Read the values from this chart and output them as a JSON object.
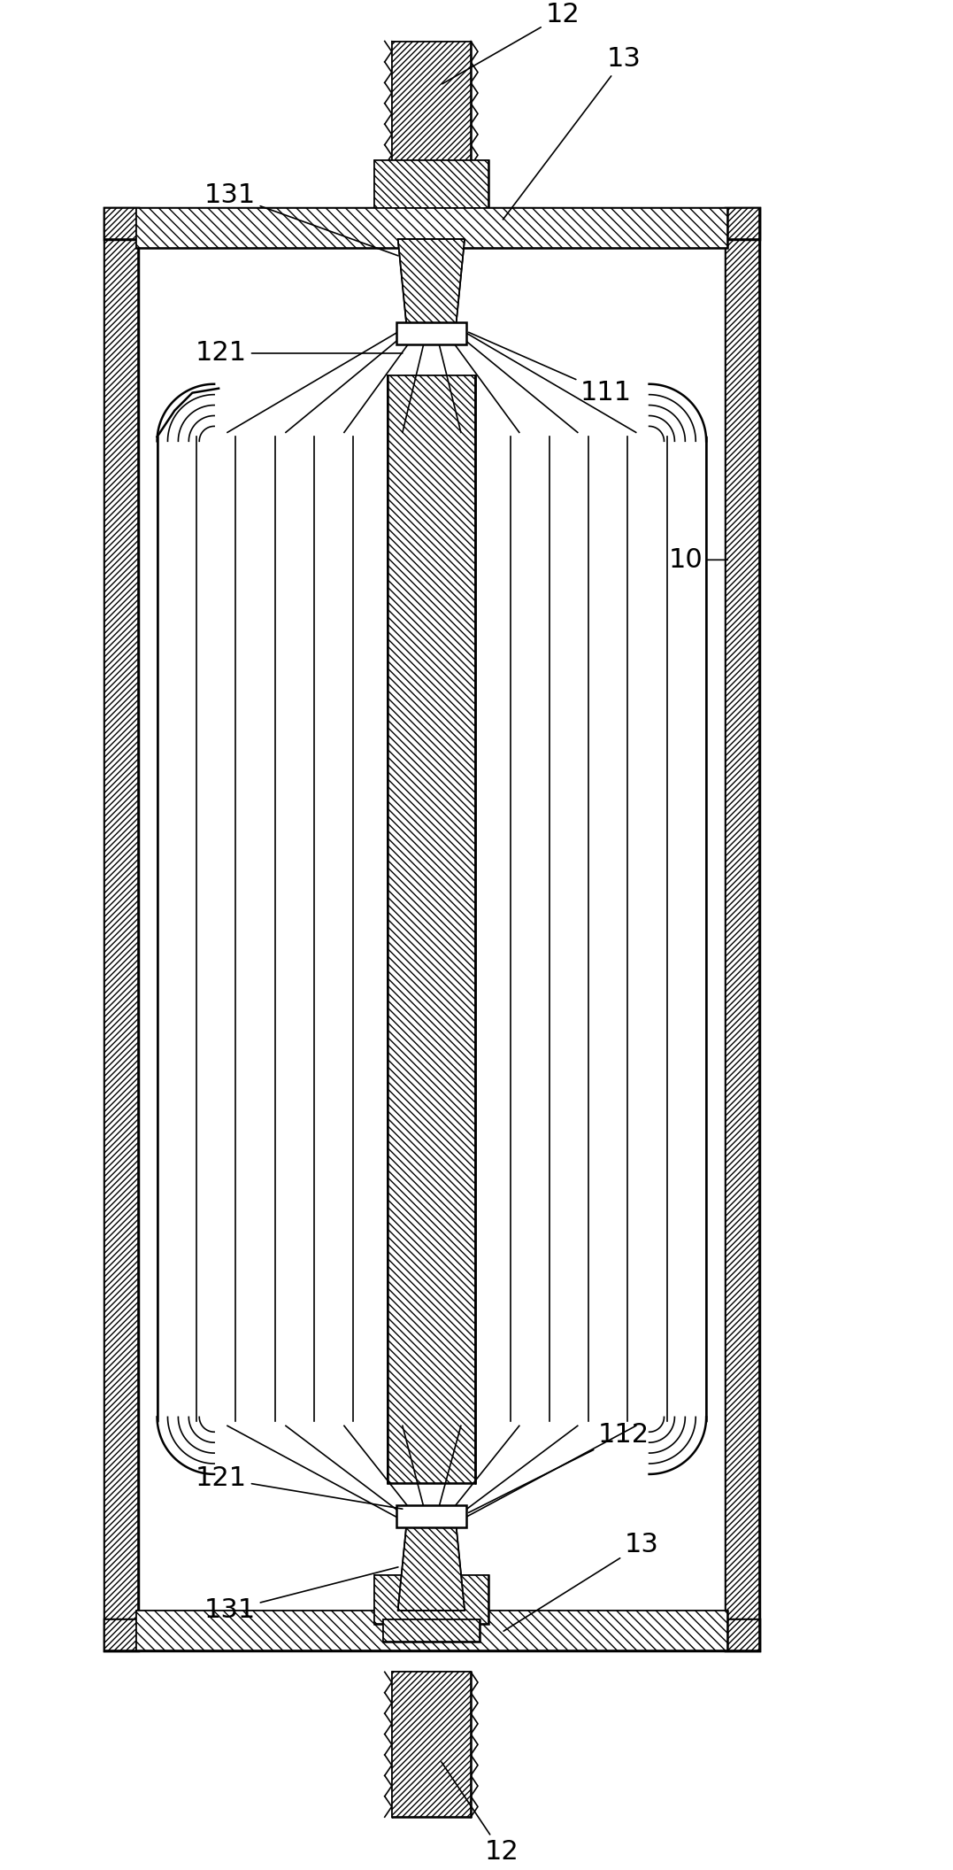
{
  "bg_color": "#ffffff",
  "line_color": "#000000",
  "hatch_color": "#000000",
  "fig_width": 10.77,
  "fig_height": 21.12,
  "labels": {
    "12_top": "12",
    "13_top": "13",
    "131_top": "131",
    "121_top": "121",
    "111": "111",
    "10": "10",
    "112": "112",
    "121_bot": "121",
    "131_bot": "131",
    "13_bot": "13",
    "12_bot": "12"
  }
}
